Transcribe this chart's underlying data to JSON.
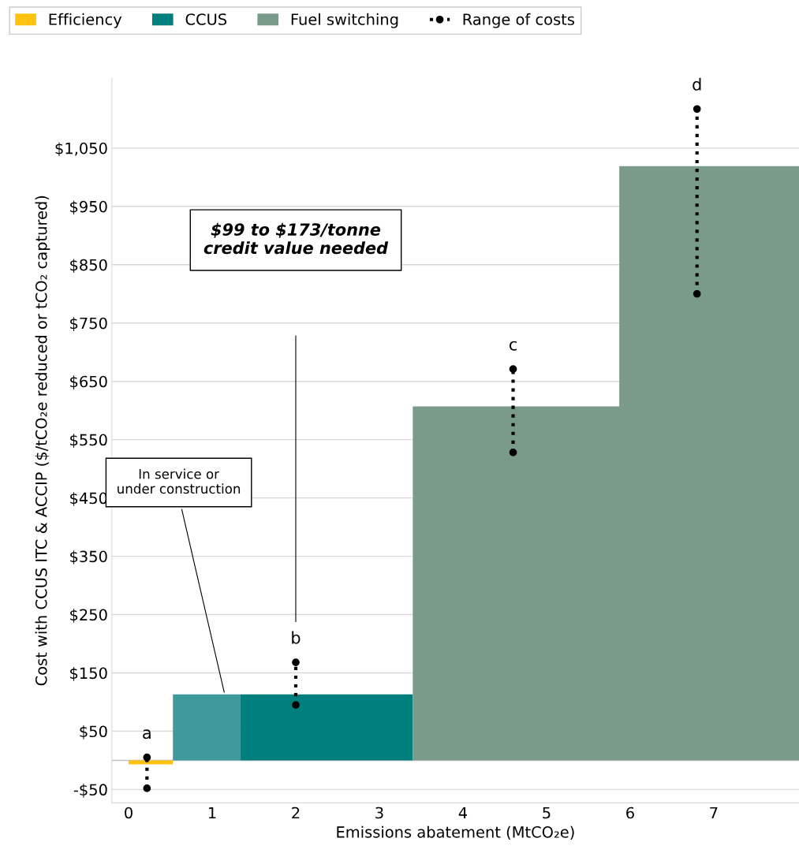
{
  "chart_data": {
    "type": "area",
    "xlabel": "Emissions abatement (MtCO₂e)",
    "ylabel": "Cost with CCUS ITC & ACCIP ($/tCO₂e reduced or tCO₂ captured)",
    "xlim": [
      -0.2,
      8.02
    ],
    "xticks": [
      0,
      1,
      2,
      3,
      4,
      5,
      6,
      7
    ],
    "ylim": [
      -73,
      1170
    ],
    "yticks": [
      {
        "value": -50,
        "label": "-$50"
      },
      {
        "value": 50,
        "label": "$50"
      },
      {
        "value": 150,
        "label": "$150"
      },
      {
        "value": 250,
        "label": "$250"
      },
      {
        "value": 350,
        "label": "$350"
      },
      {
        "value": 450,
        "label": "$450"
      },
      {
        "value": 550,
        "label": "$550"
      },
      {
        "value": 650,
        "label": "$650"
      },
      {
        "value": 750,
        "label": "$750"
      },
      {
        "value": 850,
        "label": "$850"
      },
      {
        "value": 950,
        "label": "$950"
      },
      {
        "value": 1050,
        "label": "$1,050"
      }
    ],
    "grid": "y",
    "legend": "top left",
    "series": [
      {
        "name": "Efficiency",
        "color": "#ffc20e",
        "x": [
          0,
          0.53
        ],
        "values": [
          -7,
          -7
        ]
      },
      {
        "color": "#3f9b9b",
        "x": [
          0.53,
          1.34
        ],
        "values": [
          113,
          113
        ]
      },
      {
        "name": "CCUS",
        "color": "#007f7f",
        "x": [
          1.34,
          3.4
        ],
        "values": [
          113,
          113
        ]
      },
      {
        "name": "Fuel switching",
        "color": "#7a9a8a",
        "x": [
          3.4,
          5.87,
          5.87,
          8.02
        ],
        "values": [
          607,
          607,
          1019,
          1019
        ]
      },
      {
        "name": "Range of costs",
        "type": "line",
        "color": "#000000",
        "line_style": "dotted",
        "marker": "circle",
        "x": [
          0.22,
          0.22
        ],
        "values": [
          -48,
          5
        ]
      },
      {
        "type": "line",
        "color": "#000000",
        "line_style": "dotted",
        "marker": "circle",
        "x": [
          2.0,
          2.0
        ],
        "values": [
          95,
          168
        ]
      },
      {
        "type": "line",
        "color": "#000000",
        "line_style": "dotted",
        "marker": "circle",
        "x": [
          4.6,
          4.6
        ],
        "values": [
          528,
          671
        ]
      },
      {
        "type": "line",
        "color": "#000000",
        "line_style": "dotted",
        "marker": "circle",
        "x": [
          6.8,
          6.8
        ],
        "values": [
          800,
          1117
        ]
      }
    ],
    "annotations": [
      "a",
      "b",
      "c",
      "d",
      {
        "text": "In service or under construction",
        "x": 1.15,
        "y": 113
      },
      "$99 to $173/tonne credit value needed"
    ]
  }
}
